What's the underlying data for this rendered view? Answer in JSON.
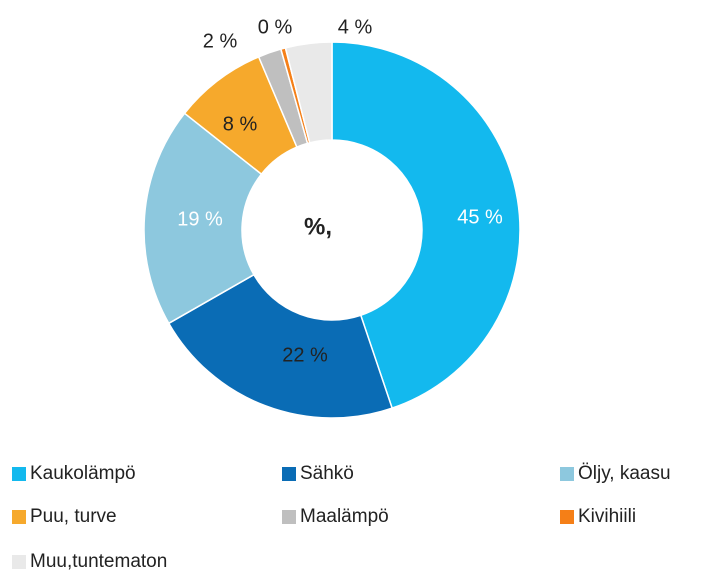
{
  "chart_data": {
    "type": "donut",
    "title": "%,",
    "categories": [
      "Kaukolämpö",
      "Sähkö",
      "Öljy, kaasu",
      "Puu, turve",
      "Maalämpö",
      "Kivihiili",
      "Muu,tuntematon"
    ],
    "values": [
      45,
      22,
      19,
      8,
      2,
      0.4,
      4
    ],
    "value_labels": [
      "45 %",
      "22 %",
      "19 %",
      "8 %",
      "2 %",
      "0 %",
      "4 %"
    ],
    "colors": [
      "#13b9ee",
      "#0a6cb5",
      "#8dc8de",
      "#f6a92c",
      "#bfbfbf",
      "#f57f17",
      "#e9e9e9"
    ],
    "legend": "bottom"
  }
}
